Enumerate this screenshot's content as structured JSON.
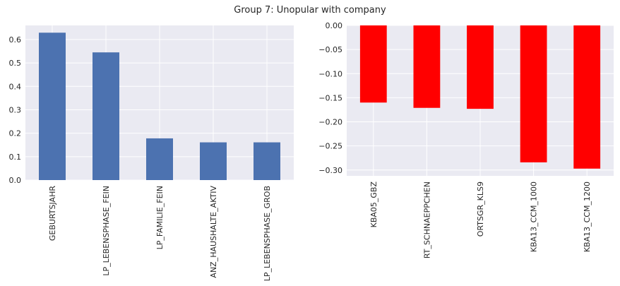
{
  "figure": {
    "title": "Group 7: Unopular with company"
  },
  "chart_data": [
    {
      "type": "bar",
      "categories": [
        "GEBURTSJAHR",
        "LP_LEBENSPHASE_FEIN",
        "LP_FAMILIE_FEIN",
        "ANZ_HAUSHALTE_AKTIV",
        "LP_LEBENSPHASE_GROB"
      ],
      "values": [
        0.629,
        0.545,
        0.178,
        0.161,
        0.161
      ],
      "ylim": [
        0,
        0.66
      ],
      "yticks": [
        0.0,
        0.1,
        0.2,
        0.3,
        0.4,
        0.5,
        0.6
      ],
      "ytick_labels": [
        "0.0",
        "0.1",
        "0.2",
        "0.3",
        "0.4",
        "0.5",
        "0.6"
      ],
      "color": "#4c72b0",
      "grid": true,
      "background": "#eaeaf2"
    },
    {
      "type": "bar",
      "categories": [
        "KBA05_GBZ",
        "RT_SCHNAEPPCHEN",
        "ORTSGR_KLS9",
        "KBA13_CCM_1000",
        "KBA13_CCM_1200"
      ],
      "values": [
        -0.16,
        -0.171,
        -0.173,
        -0.284,
        -0.297
      ],
      "ylim": [
        -0.312,
        0.0
      ],
      "yticks": [
        0.0,
        -0.05,
        -0.1,
        -0.15,
        -0.2,
        -0.25,
        -0.3
      ],
      "ytick_labels": [
        "0.00",
        "−0.05",
        "−0.10",
        "−0.15",
        "−0.20",
        "−0.25",
        "−0.30"
      ],
      "color": "#ff0000",
      "grid": true,
      "background": "#eaeaf2"
    }
  ]
}
